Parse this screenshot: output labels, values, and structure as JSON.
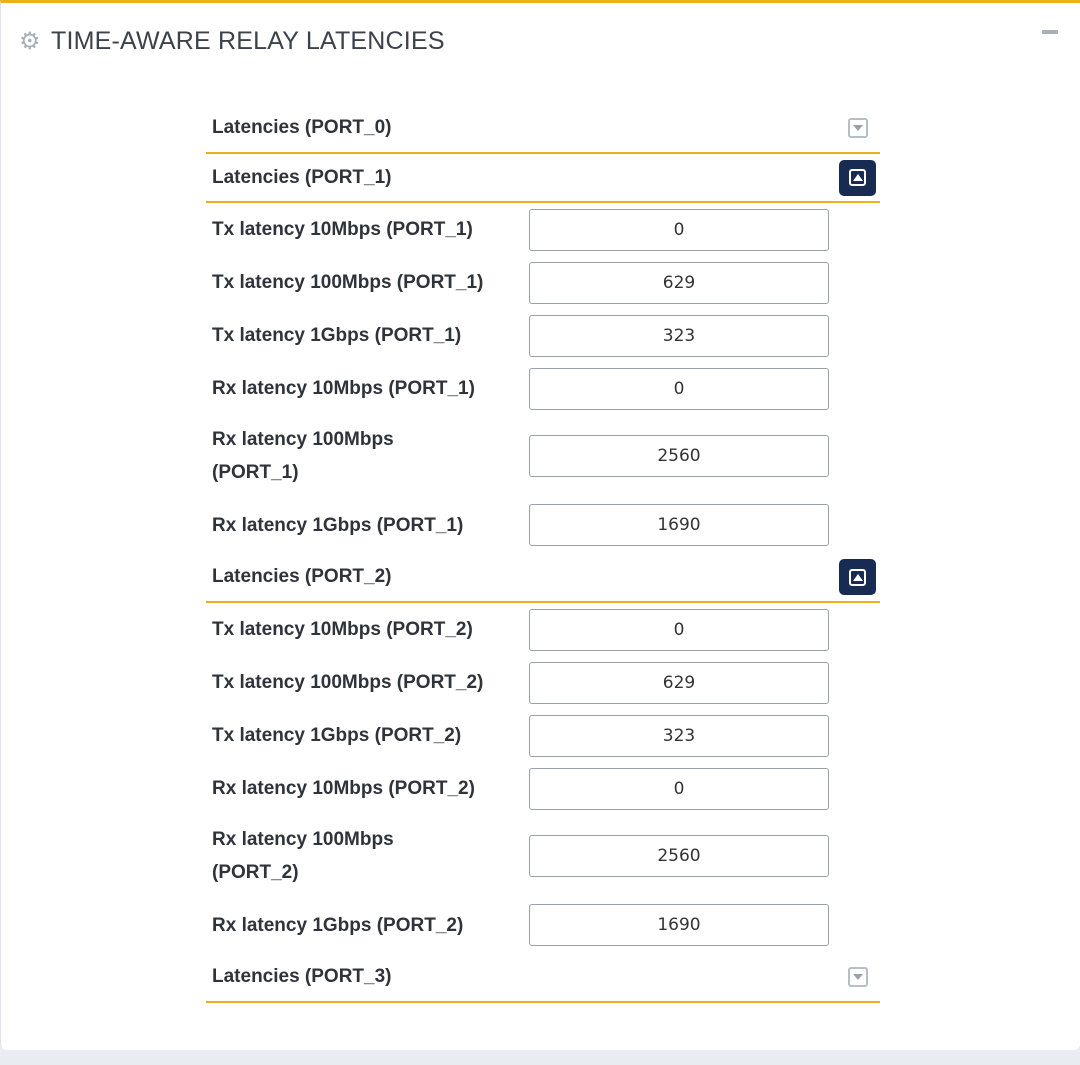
{
  "panel": {
    "title": "TIME-AWARE RELAY LATENCIES",
    "icon": "gear-icon",
    "collapse_icon": "minus-icon"
  },
  "sections": [
    {
      "label": "Latencies (PORT_0)",
      "expanded": false,
      "rows": []
    },
    {
      "label": "Latencies (PORT_1)",
      "expanded": true,
      "rows": [
        {
          "label": "Tx latency 10Mbps (PORT_1)",
          "value": "0"
        },
        {
          "label": "Tx latency 100Mbps (PORT_1)",
          "value": "629"
        },
        {
          "label": "Tx latency 1Gbps (PORT_1)",
          "value": "323"
        },
        {
          "label": "Rx latency 10Mbps (PORT_1)",
          "value": "0"
        },
        {
          "label": "Rx latency 100Mbps (PORT_1)",
          "value": "2560"
        },
        {
          "label": "Rx latency 1Gbps (PORT_1)",
          "value": "1690"
        }
      ]
    },
    {
      "label": "Latencies (PORT_2)",
      "expanded": true,
      "rows": [
        {
          "label": "Tx latency 10Mbps (PORT_2)",
          "value": "0"
        },
        {
          "label": "Tx latency 100Mbps (PORT_2)",
          "value": "629"
        },
        {
          "label": "Tx latency 1Gbps (PORT_2)",
          "value": "323"
        },
        {
          "label": "Rx latency 10Mbps (PORT_2)",
          "value": "0"
        },
        {
          "label": "Rx latency 100Mbps (PORT_2)",
          "value": "2560"
        },
        {
          "label": "Rx latency 1Gbps (PORT_2)",
          "value": "1690"
        }
      ]
    },
    {
      "label": "Latencies (PORT_3)",
      "expanded": false,
      "rows": []
    }
  ],
  "colors": {
    "accent": "#e8b21b",
    "toggle_active": "#182b52"
  }
}
